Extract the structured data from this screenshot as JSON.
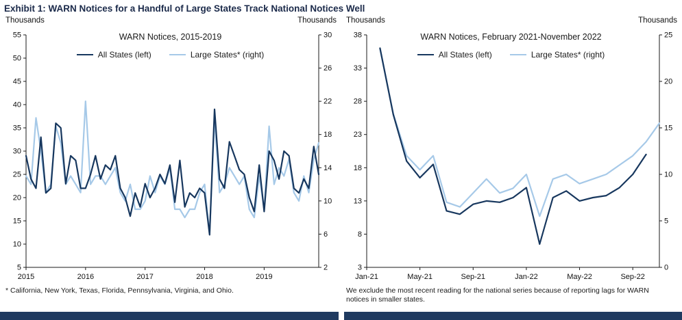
{
  "exhibit": {
    "title": "Exhibit 1: WARN Notices for a Handful of Large States Track National Notices Well"
  },
  "colors": {
    "all_states": "#17375e",
    "large_states": "#a6c9e8",
    "header_text": "#1b2a4a",
    "bottom_bar": "#1f3a60"
  },
  "chart_data": [
    {
      "type": "line",
      "title": "WARN Notices, 2015-2019",
      "left_axis": {
        "label": "Thousands",
        "min": 5,
        "max": 55,
        "ticks": [
          5,
          10,
          15,
          20,
          25,
          30,
          35,
          40,
          45,
          50,
          55
        ]
      },
      "right_axis": {
        "label": "Thousands",
        "min": 2,
        "max": 30,
        "ticks": [
          2,
          6,
          10,
          14,
          18,
          22,
          26,
          30
        ]
      },
      "x_domain": [
        0,
        59
      ],
      "x_ticks": [
        {
          "pos": 0,
          "label": "2015"
        },
        {
          "pos": 12,
          "label": "2016"
        },
        {
          "pos": 24,
          "label": "2017"
        },
        {
          "pos": 36,
          "label": "2018"
        },
        {
          "pos": 48,
          "label": "2019"
        }
      ],
      "series": [
        {
          "name": "All States (left)",
          "axis": "left",
          "color_key": "all_states",
          "x_start": 0,
          "values": [
            29,
            24,
            22,
            33,
            21,
            22,
            36,
            35,
            23,
            29,
            28,
            22,
            22,
            25,
            29,
            24,
            27,
            26,
            29,
            22,
            20,
            16,
            21,
            18,
            23,
            20,
            22,
            25,
            23,
            27,
            19,
            28,
            18,
            21,
            20,
            22,
            21,
            12,
            39,
            24,
            22,
            32,
            29,
            26,
            25,
            20,
            17,
            27,
            17,
            30,
            28,
            24,
            30,
            29,
            22,
            21,
            24,
            22,
            31,
            25
          ]
        },
        {
          "name": "Large States* (right)",
          "axis": "right",
          "color_key": "large_states",
          "x_start": 0,
          "values": [
            13,
            12,
            20,
            16,
            11,
            12,
            19,
            17,
            12,
            13,
            12,
            11,
            22,
            12,
            13,
            13,
            12,
            13,
            14,
            11,
            10,
            12,
            9,
            9,
            10,
            13,
            11,
            13,
            12,
            14,
            9,
            9,
            8,
            9,
            9,
            11,
            12,
            6,
            20,
            11,
            12,
            14,
            13,
            12,
            13,
            9,
            8,
            13,
            9,
            19,
            12,
            14,
            13,
            15,
            11,
            10,
            13,
            11,
            15,
            17
          ]
        }
      ],
      "footnote": "* California, New York, Texas, Florida, Pennsylvania, Virginia, and Ohio."
    },
    {
      "type": "line",
      "title": "WARN Notices, February 2021-November 2022",
      "left_axis": {
        "label": "Thousands",
        "min": 3,
        "max": 38,
        "ticks": [
          3,
          8,
          13,
          18,
          23,
          28,
          33,
          38
        ]
      },
      "right_axis": {
        "label": "Thousands",
        "min": 0,
        "max": 25,
        "ticks": [
          0,
          5,
          10,
          15,
          20,
          25
        ]
      },
      "x_domain": [
        0,
        22
      ],
      "x_ticks": [
        {
          "pos": 0,
          "label": "Jan-21"
        },
        {
          "pos": 4,
          "label": "May-21"
        },
        {
          "pos": 8,
          "label": "Sep-21"
        },
        {
          "pos": 12,
          "label": "Jan-22"
        },
        {
          "pos": 16,
          "label": "May-22"
        },
        {
          "pos": 20,
          "label": "Sep-22"
        }
      ],
      "series": [
        {
          "name": "All States (left)",
          "axis": "left",
          "color_key": "all_states",
          "x_start": 1,
          "values": [
            36,
            26,
            19,
            16.5,
            18.5,
            11.5,
            11,
            12.5,
            13,
            12.8,
            13.5,
            15,
            6.5,
            13.5,
            14.5,
            13,
            13.5,
            13.8,
            15,
            17,
            20
          ]
        },
        {
          "name": "Large States* (right)",
          "axis": "right",
          "color_key": "large_states",
          "x_start": 1,
          "values": [
            23.5,
            16.5,
            12,
            10.5,
            12,
            7,
            6.5,
            8,
            9.5,
            8,
            8.5,
            10,
            5.5,
            9.5,
            10,
            9,
            9.5,
            10,
            11,
            12,
            13.5,
            15.5
          ]
        }
      ],
      "footnote": "We exclude the most recent reading for the national series because of reporting lags for WARN notices in smaller states."
    }
  ]
}
